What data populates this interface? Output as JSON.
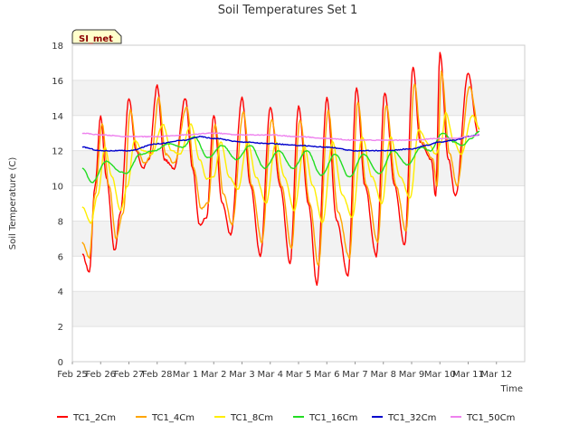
{
  "chart_data": {
    "type": "line",
    "title": "Soil Temperatures Set 1",
    "xlabel": "Time",
    "ylabel": "Soil Temperature (C)",
    "badge": "SI_met",
    "ylim": [
      0,
      18
    ],
    "yticks": [
      0,
      2,
      4,
      6,
      8,
      10,
      12,
      14,
      16,
      18
    ],
    "xlim": [
      0,
      16
    ],
    "xticks": [
      "Feb 25",
      "Feb 26",
      "Feb 27",
      "Feb 28",
      "Mar 1",
      "Mar 2",
      "Mar 3",
      "Mar 4",
      "Mar 5",
      "Mar 6",
      "Mar 7",
      "Mar 8",
      "Mar 9",
      "Mar 10",
      "Mar 11",
      "Mar 12"
    ],
    "x_units": "days since Feb 25",
    "grid": "horizontal bands",
    "legend_position": "bottom",
    "series": [
      {
        "name": "TC1_2Cm",
        "color": "#ff0000",
        "points": [
          [
            0.35,
            6.1
          ],
          [
            0.6,
            5.1
          ],
          [
            0.8,
            10.0
          ],
          [
            1.0,
            14.0
          ],
          [
            1.2,
            10.5
          ],
          [
            1.5,
            6.3
          ],
          [
            1.7,
            8.5
          ],
          [
            2.0,
            15.0
          ],
          [
            2.25,
            12.0
          ],
          [
            2.5,
            11.0
          ],
          [
            2.7,
            11.5
          ],
          [
            3.0,
            15.7
          ],
          [
            3.25,
            11.5
          ],
          [
            3.6,
            11.0
          ],
          [
            4.0,
            15.0
          ],
          [
            4.25,
            11.0
          ],
          [
            4.5,
            7.8
          ],
          [
            4.75,
            8.2
          ],
          [
            5.0,
            14.0
          ],
          [
            5.3,
            9.0
          ],
          [
            5.6,
            7.2
          ],
          [
            6.0,
            15.0
          ],
          [
            6.3,
            10.0
          ],
          [
            6.65,
            6.0
          ],
          [
            7.0,
            14.5
          ],
          [
            7.35,
            10.0
          ],
          [
            7.7,
            5.6
          ],
          [
            8.0,
            14.5
          ],
          [
            8.35,
            9.0
          ],
          [
            8.65,
            4.4
          ],
          [
            9.0,
            15.0
          ],
          [
            9.35,
            8.0
          ],
          [
            9.75,
            4.9
          ],
          [
            10.05,
            15.6
          ],
          [
            10.35,
            10.0
          ],
          [
            10.75,
            6.0
          ],
          [
            11.05,
            15.3
          ],
          [
            11.4,
            10.0
          ],
          [
            11.75,
            6.6
          ],
          [
            12.05,
            16.8
          ],
          [
            12.3,
            12.5
          ],
          [
            12.7,
            11.5
          ],
          [
            12.85,
            9.4
          ],
          [
            13.0,
            17.6
          ],
          [
            13.3,
            11.5
          ],
          [
            13.55,
            9.4
          ],
          [
            14.0,
            16.4
          ],
          [
            14.35,
            13.0
          ]
        ]
      },
      {
        "name": "TC1_4Cm",
        "color": "#ffa500",
        "points": [
          [
            0.35,
            6.8
          ],
          [
            0.6,
            5.9
          ],
          [
            0.8,
            9.5
          ],
          [
            1.05,
            13.5
          ],
          [
            1.3,
            10.0
          ],
          [
            1.55,
            7.0
          ],
          [
            1.8,
            8.5
          ],
          [
            2.05,
            14.3
          ],
          [
            2.3,
            12.0
          ],
          [
            2.55,
            11.3
          ],
          [
            2.8,
            11.8
          ],
          [
            3.05,
            15.0
          ],
          [
            3.3,
            11.8
          ],
          [
            3.6,
            11.3
          ],
          [
            4.05,
            14.5
          ],
          [
            4.3,
            11.0
          ],
          [
            4.55,
            8.7
          ],
          [
            4.8,
            9.0
          ],
          [
            5.05,
            13.5
          ],
          [
            5.35,
            9.5
          ],
          [
            5.65,
            7.8
          ],
          [
            6.05,
            14.2
          ],
          [
            6.35,
            10.0
          ],
          [
            6.7,
            6.8
          ],
          [
            7.05,
            13.8
          ],
          [
            7.4,
            10.0
          ],
          [
            7.75,
            6.4
          ],
          [
            8.05,
            13.8
          ],
          [
            8.4,
            9.0
          ],
          [
            8.7,
            5.5
          ],
          [
            9.05,
            14.3
          ],
          [
            9.4,
            8.5
          ],
          [
            9.8,
            5.9
          ],
          [
            10.1,
            14.8
          ],
          [
            10.4,
            10.0
          ],
          [
            10.8,
            6.8
          ],
          [
            11.1,
            14.6
          ],
          [
            11.45,
            10.0
          ],
          [
            11.8,
            7.4
          ],
          [
            12.1,
            15.8
          ],
          [
            12.35,
            12.5
          ],
          [
            12.75,
            11.5
          ],
          [
            12.9,
            10.0
          ],
          [
            13.05,
            16.5
          ],
          [
            13.35,
            11.8
          ],
          [
            13.6,
            10.0
          ],
          [
            14.05,
            15.6
          ],
          [
            14.4,
            13.2
          ]
        ]
      },
      {
        "name": "TC1_8Cm",
        "color": "#ffee00",
        "points": [
          [
            0.35,
            8.8
          ],
          [
            0.65,
            7.9
          ],
          [
            0.9,
            9.5
          ],
          [
            1.15,
            12.2
          ],
          [
            1.4,
            10.5
          ],
          [
            1.7,
            8.6
          ],
          [
            1.95,
            10.0
          ],
          [
            2.2,
            12.6
          ],
          [
            2.5,
            12.0
          ],
          [
            2.8,
            11.8
          ],
          [
            3.2,
            13.5
          ],
          [
            3.5,
            12.0
          ],
          [
            3.8,
            11.8
          ],
          [
            4.2,
            13.5
          ],
          [
            4.5,
            11.5
          ],
          [
            4.75,
            10.4
          ],
          [
            5.0,
            10.5
          ],
          [
            5.25,
            12.5
          ],
          [
            5.55,
            10.5
          ],
          [
            5.85,
            9.8
          ],
          [
            6.2,
            12.5
          ],
          [
            6.5,
            10.5
          ],
          [
            6.85,
            9.0
          ],
          [
            7.2,
            12.5
          ],
          [
            7.5,
            10.5
          ],
          [
            7.85,
            8.6
          ],
          [
            8.2,
            12.3
          ],
          [
            8.5,
            10.0
          ],
          [
            8.85,
            7.9
          ],
          [
            9.2,
            12.5
          ],
          [
            9.55,
            9.5
          ],
          [
            9.9,
            8.2
          ],
          [
            10.25,
            12.8
          ],
          [
            10.6,
            10.5
          ],
          [
            10.95,
            9.0
          ],
          [
            11.25,
            12.8
          ],
          [
            11.6,
            10.5
          ],
          [
            11.95,
            9.3
          ],
          [
            12.25,
            13.2
          ],
          [
            12.6,
            12.4
          ],
          [
            12.85,
            11.8
          ],
          [
            13.05,
            12.5
          ],
          [
            13.2,
            14.2
          ],
          [
            13.5,
            12.5
          ],
          [
            13.75,
            11.8
          ],
          [
            14.15,
            14.0
          ],
          [
            14.4,
            13.3
          ]
        ]
      },
      {
        "name": "TC1_16Cm",
        "color": "#22dd22",
        "points": [
          [
            0.35,
            11.0
          ],
          [
            0.7,
            10.2
          ],
          [
            1.2,
            11.4
          ],
          [
            1.7,
            10.8
          ],
          [
            1.9,
            10.7
          ],
          [
            2.4,
            11.8
          ],
          [
            2.9,
            12.0
          ],
          [
            3.4,
            12.4
          ],
          [
            3.9,
            12.2
          ],
          [
            4.3,
            12.8
          ],
          [
            4.8,
            11.6
          ],
          [
            5.3,
            12.3
          ],
          [
            5.8,
            11.5
          ],
          [
            6.3,
            12.3
          ],
          [
            6.8,
            11.0
          ],
          [
            7.3,
            12.0
          ],
          [
            7.8,
            11.0
          ],
          [
            8.3,
            12.0
          ],
          [
            8.8,
            10.6
          ],
          [
            9.3,
            11.8
          ],
          [
            9.8,
            10.5
          ],
          [
            10.3,
            11.8
          ],
          [
            10.85,
            10.7
          ],
          [
            11.35,
            12.0
          ],
          [
            11.85,
            11.2
          ],
          [
            12.35,
            12.2
          ],
          [
            12.65,
            12.0
          ],
          [
            13.1,
            13.0
          ],
          [
            13.5,
            12.5
          ],
          [
            13.8,
            12.3
          ],
          [
            14.1,
            12.7
          ],
          [
            14.4,
            13.1
          ]
        ]
      },
      {
        "name": "TC1_32Cm",
        "color": "#0000cc",
        "points": [
          [
            0.35,
            12.2
          ],
          [
            1.0,
            12.0
          ],
          [
            2.0,
            12.0
          ],
          [
            3.0,
            12.4
          ],
          [
            4.0,
            12.6
          ],
          [
            4.5,
            12.8
          ],
          [
            5.0,
            12.7
          ],
          [
            6.0,
            12.5
          ],
          [
            7.0,
            12.4
          ],
          [
            8.0,
            12.3
          ],
          [
            9.0,
            12.2
          ],
          [
            10.0,
            12.0
          ],
          [
            11.0,
            12.0
          ],
          [
            12.0,
            12.1
          ],
          [
            12.5,
            12.3
          ],
          [
            13.0,
            12.5
          ],
          [
            13.5,
            12.6
          ],
          [
            14.0,
            12.8
          ],
          [
            14.4,
            12.9
          ]
        ]
      },
      {
        "name": "TC1_50Cm",
        "color": "#ee82ee",
        "points": [
          [
            0.35,
            13.0
          ],
          [
            1.0,
            12.9
          ],
          [
            2.0,
            12.8
          ],
          [
            3.0,
            12.8
          ],
          [
            4.0,
            12.9
          ],
          [
            5.0,
            13.0
          ],
          [
            6.0,
            12.9
          ],
          [
            7.0,
            12.9
          ],
          [
            8.0,
            12.8
          ],
          [
            9.0,
            12.7
          ],
          [
            10.0,
            12.6
          ],
          [
            11.0,
            12.6
          ],
          [
            12.0,
            12.6
          ],
          [
            13.0,
            12.7
          ],
          [
            13.5,
            12.7
          ],
          [
            14.0,
            12.8
          ],
          [
            14.4,
            12.9
          ]
        ]
      }
    ]
  }
}
